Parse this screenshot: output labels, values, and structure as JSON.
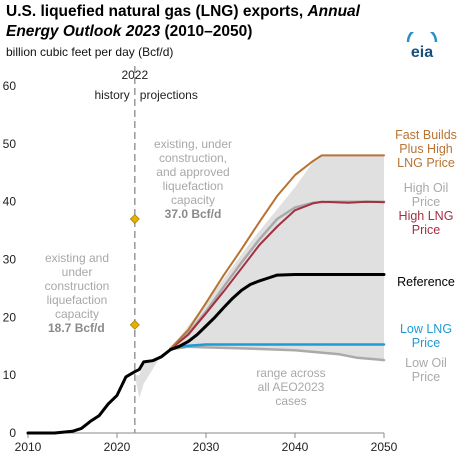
{
  "header": {
    "title_part1": "U.S. liquefied natural gas (LNG) exports, ",
    "title_part2": "Annual Energy Outlook 2023",
    "title_part3": " (2010–2050)",
    "subtitle": "billion cubic feet per day (Bcf/d)",
    "logo_text": "eia"
  },
  "chart_data": {
    "type": "line",
    "title": "U.S. liquefied natural gas (LNG) exports, Annual Energy Outlook 2023 (2010–2050)",
    "ylabel": "billion cubic feet per day (Bcf/d)",
    "xlim": [
      2010,
      2050
    ],
    "ylim": [
      0,
      60
    ],
    "x_ticks": [
      2010,
      2020,
      2030,
      2040,
      2050
    ],
    "y_ticks": [
      0,
      10,
      20,
      30,
      40,
      50,
      60
    ],
    "grid": false,
    "divider": {
      "x": 2022,
      "label": "2022",
      "left_label": "history",
      "right_label": "projections"
    },
    "range_band": {
      "label": "range across all AEO2023 cases",
      "color": "#e0e0e0",
      "lower": [
        [
          2022,
          10
        ],
        [
          2022.5,
          6
        ],
        [
          2023,
          8.5
        ],
        [
          2024,
          11
        ],
        [
          2025,
          13.5
        ],
        [
          2026,
          14.4
        ],
        [
          2027,
          14.7
        ],
        [
          2028,
          14.9
        ],
        [
          2030,
          14.8
        ],
        [
          2035,
          14.6
        ],
        [
          2040,
          14.3
        ],
        [
          2045,
          13.6
        ],
        [
          2047,
          13
        ],
        [
          2050,
          12.6
        ]
      ],
      "upper": [
        [
          2022,
          10
        ],
        [
          2022.5,
          10
        ],
        [
          2023,
          12.2
        ],
        [
          2024,
          12.6
        ],
        [
          2025,
          13.6
        ],
        [
          2026,
          14.6
        ],
        [
          2027,
          16.5
        ],
        [
          2028,
          18.5
        ],
        [
          2030,
          22.5
        ],
        [
          2035,
          33
        ],
        [
          2040,
          42.5
        ],
        [
          2042,
          46.8
        ],
        [
          2043,
          48
        ],
        [
          2050,
          48
        ]
      ]
    },
    "series": [
      {
        "name": "Reference",
        "color": "#000000",
        "width": 3,
        "values": [
          [
            2010,
            0
          ],
          [
            2013,
            0
          ],
          [
            2015,
            0.3
          ],
          [
            2016,
            0.8
          ],
          [
            2017,
            2
          ],
          [
            2018,
            3
          ],
          [
            2019,
            5
          ],
          [
            2020,
            6.5
          ],
          [
            2021,
            9.7
          ],
          [
            2022,
            10.6
          ],
          [
            2022.5,
            11
          ],
          [
            2023,
            12.3
          ],
          [
            2024,
            12.5
          ],
          [
            2025,
            13.2
          ],
          [
            2026,
            14.4
          ],
          [
            2027,
            15
          ],
          [
            2028,
            15.8
          ],
          [
            2029,
            17
          ],
          [
            2030,
            18.5
          ],
          [
            2031,
            20
          ],
          [
            2032,
            21.7
          ],
          [
            2033,
            23.3
          ],
          [
            2034,
            24.7
          ],
          [
            2035,
            25.7
          ],
          [
            2036,
            26.3
          ],
          [
            2037,
            26.8
          ],
          [
            2038,
            27.3
          ],
          [
            2040,
            27.4
          ],
          [
            2050,
            27.4
          ]
        ]
      },
      {
        "name": "High Oil Price",
        "color": "#aaaaaa",
        "width": 2.5,
        "values": [
          [
            2026,
            14.5
          ],
          [
            2028,
            17.2
          ],
          [
            2030,
            21
          ],
          [
            2032,
            25.3
          ],
          [
            2034,
            29.5
          ],
          [
            2036,
            33.5
          ],
          [
            2038,
            37
          ],
          [
            2040,
            39
          ],
          [
            2042,
            39.8
          ],
          [
            2044,
            40
          ],
          [
            2050,
            40
          ]
        ]
      },
      {
        "name": "High LNG Price",
        "color": "#a33042",
        "width": 2,
        "values": [
          [
            2026,
            14.5
          ],
          [
            2028,
            17
          ],
          [
            2030,
            20.7
          ],
          [
            2032,
            24.5
          ],
          [
            2034,
            28.5
          ],
          [
            2036,
            32.5
          ],
          [
            2038,
            35.7
          ],
          [
            2040,
            38.5
          ],
          [
            2042,
            39.7
          ],
          [
            2043,
            40
          ],
          [
            2046,
            39.8
          ],
          [
            2048,
            40
          ],
          [
            2050,
            39.9
          ]
        ]
      },
      {
        "name": "Fast Builds Plus High LNG Price",
        "color": "#b87333",
        "width": 2,
        "values": [
          [
            2026,
            14.6
          ],
          [
            2028,
            17.8
          ],
          [
            2030,
            22.5
          ],
          [
            2032,
            27.3
          ],
          [
            2034,
            31.8
          ],
          [
            2036,
            36.5
          ],
          [
            2038,
            41
          ],
          [
            2040,
            44.6
          ],
          [
            2042,
            47
          ],
          [
            2043,
            48
          ],
          [
            2050,
            48
          ]
        ]
      },
      {
        "name": "Low LNG Price",
        "color": "#1e9ad6",
        "width": 2.5,
        "values": [
          [
            2026,
            14.6
          ],
          [
            2027,
            14.9
          ],
          [
            2028,
            15.1
          ],
          [
            2030,
            15.3
          ],
          [
            2040,
            15.3
          ],
          [
            2050,
            15.3
          ]
        ]
      },
      {
        "name": "Low Oil Price",
        "color": "#aaaaaa",
        "width": 2.5,
        "values": [
          [
            2026,
            14.5
          ],
          [
            2027,
            14.7
          ],
          [
            2028,
            14.9
          ],
          [
            2030,
            14.8
          ],
          [
            2035,
            14.6
          ],
          [
            2040,
            14.3
          ],
          [
            2045,
            13.6
          ],
          [
            2047,
            13
          ],
          [
            2050,
            12.6
          ]
        ]
      }
    ],
    "markers": [
      {
        "x": 2022,
        "y": 37,
        "color": "#e6b000",
        "text_lines": [
          "existing, under",
          "construction,",
          "and approved",
          "liquefaction",
          "capacity"
        ],
        "value_text": "37.0 Bcf/d"
      },
      {
        "x": 2022,
        "y": 18.7,
        "color": "#e6b000",
        "text_lines": [
          "existing and",
          "under",
          "construction",
          "liquefaction",
          "capacity"
        ],
        "value_text": "18.7 Bcf/d"
      }
    ],
    "legend_labels": [
      {
        "series": "Fast Builds Plus High LNG Price",
        "lines": [
          "Fast Builds",
          "Plus High",
          "LNG Price"
        ],
        "color": "#b87333"
      },
      {
        "series": "High Oil Price",
        "lines": [
          "High Oil",
          "Price"
        ],
        "color": "#aaaaaa"
      },
      {
        "series": "High LNG Price",
        "lines": [
          "High LNG",
          "Price"
        ],
        "color": "#a33042"
      },
      {
        "series": "Reference",
        "lines": [
          "Reference"
        ],
        "color": "#000000"
      },
      {
        "series": "Low LNG Price",
        "lines": [
          "Low LNG",
          "Price"
        ],
        "color": "#1e9ad6"
      },
      {
        "series": "Low Oil Price",
        "lines": [
          "Low Oil",
          "Price"
        ],
        "color": "#aaaaaa"
      }
    ]
  }
}
